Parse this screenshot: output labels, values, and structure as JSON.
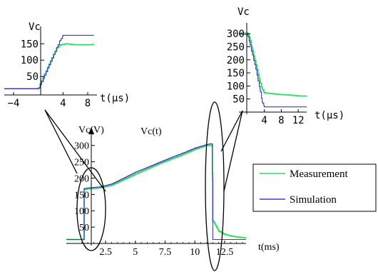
{
  "chart_data": [
    {
      "type": "line",
      "ylabel": "Vc",
      "xlabel": "t(µs)",
      "xlim": [
        -5.5,
        9.5
      ],
      "ylim": [
        0,
        190
      ],
      "xticks": [
        -4,
        4,
        8
      ],
      "yticks": [
        50,
        100,
        150
      ],
      "series": [
        {
          "color": "#33dd66",
          "x": [
            -5.5,
            -4,
            -2,
            0,
            0.5,
            1,
            1.5,
            2,
            2.5,
            3,
            3.5,
            4,
            4.5,
            5,
            6,
            7,
            8,
            9
          ],
          "y": [
            13,
            13,
            13,
            13,
            36,
            57,
            78,
            98,
            118,
            137,
            146,
            148,
            150,
            149,
            147,
            147,
            147,
            148
          ]
        },
        {
          "color": "#4433cc",
          "x": [
            -5.5,
            -4,
            -2,
            0,
            0.5,
            1,
            1.5,
            2,
            2.5,
            3,
            3.5,
            4,
            5,
            6,
            7,
            8,
            9
          ],
          "y": [
            12,
            12,
            12,
            12,
            32,
            53,
            75,
            96,
            118,
            139,
            160,
            176,
            176,
            176,
            176,
            176,
            176
          ]
        }
      ]
    },
    {
      "type": "line",
      "ylabel": "Vc",
      "xlabel": "t(µs)",
      "xlim": [
        -2,
        14
      ],
      "ylim": [
        0,
        325
      ],
      "xticks": [
        4,
        8,
        12
      ],
      "yticks": [
        50,
        100,
        150,
        200,
        250,
        300
      ],
      "series": [
        {
          "color": "#33dd66",
          "x": [
            -2,
            -1,
            0,
            0.5,
            1,
            1.5,
            2,
            2.5,
            3,
            3.5,
            4,
            5,
            6,
            8,
            10,
            12,
            14
          ],
          "y": [
            300,
            302,
            302,
            285,
            248,
            214,
            181,
            147,
            113,
            88,
            74,
            72,
            70,
            67,
            65,
            62,
            61
          ]
        },
        {
          "color": "#4433cc",
          "x": [
            -2,
            -1,
            0,
            0.5,
            1,
            1.5,
            2,
            2.5,
            3,
            3.5,
            4,
            6,
            8,
            10,
            12,
            14
          ],
          "y": [
            298,
            298,
            296,
            268,
            232,
            198,
            163,
            122,
            83,
            38,
            20,
            20,
            20,
            20,
            20,
            20
          ]
        }
      ]
    },
    {
      "type": "line",
      "title": "Vc(t)",
      "ylabel": "Vc(V)",
      "xlabel": "t(ms)",
      "xlim": [
        -0.8,
        14.3
      ],
      "ylim": [
        0,
        330
      ],
      "xticks": [
        2.5,
        5,
        7.5,
        10,
        12.5
      ],
      "yticks": [
        50,
        100,
        150,
        200,
        250,
        300
      ],
      "series": [
        {
          "name": "Measurement",
          "color": "#33dd66",
          "x": [
            -0.8,
            0,
            0.5,
            0.65,
            0.7,
            1,
            2,
            3,
            4,
            5,
            6,
            7,
            8,
            9,
            10,
            11,
            11.3,
            11.45,
            11.5,
            12,
            12.5,
            13,
            13.5,
            14,
            14.3
          ],
          "y": [
            12,
            12,
            12,
            12,
            165,
            167,
            170,
            178,
            195,
            212,
            228,
            244,
            258,
            272,
            288,
            300,
            300,
            302,
            70,
            38,
            28,
            23,
            20,
            18,
            18
          ]
        },
        {
          "name": "Simulation",
          "color": "#4433cc",
          "x": [
            -0.8,
            0,
            0.5,
            0.65,
            0.7,
            1,
            2,
            3,
            4,
            5,
            6,
            7,
            8,
            9,
            10,
            11,
            11.3,
            11.45,
            11.5,
            12,
            14.3
          ],
          "y": [
            12,
            12,
            12,
            12,
            168,
            170,
            173,
            182,
            200,
            218,
            233,
            248,
            263,
            277,
            292,
            303,
            305,
            305,
            12,
            12,
            12
          ]
        }
      ],
      "legend": "right"
    }
  ]
}
